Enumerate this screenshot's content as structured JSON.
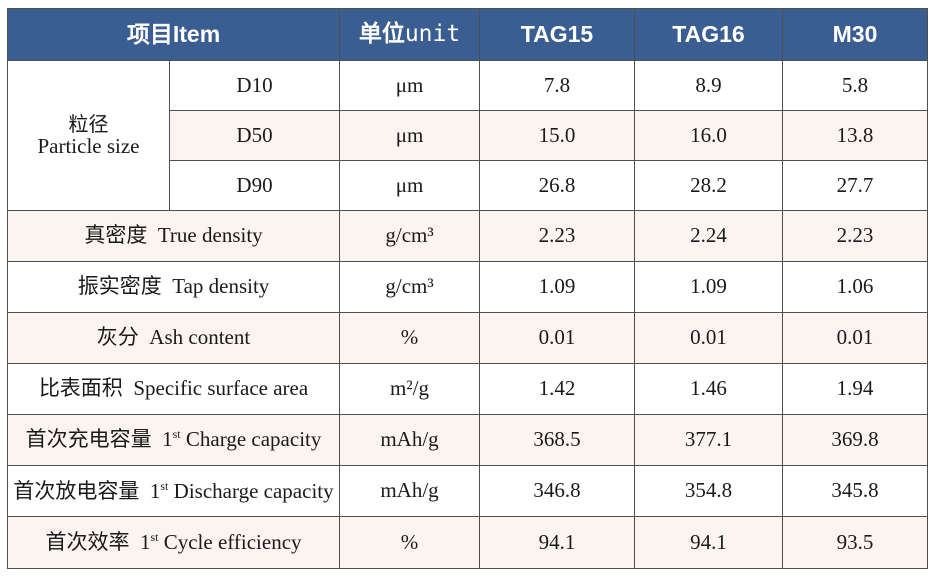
{
  "header": {
    "item_cn": "项目",
    "item_en": "Item",
    "unit_cn": "单位",
    "unit_en": "unit",
    "products": [
      "TAG15",
      "TAG16",
      "M30"
    ]
  },
  "particle_size": {
    "label_cn": "粒径",
    "label_en": "Particle size",
    "rows": [
      {
        "sub": "D10",
        "unit": "μm",
        "values": [
          "7.8",
          "8.9",
          "5.8"
        ]
      },
      {
        "sub": "D50",
        "unit": "μm",
        "values": [
          "15.0",
          "16.0",
          "13.8"
        ]
      },
      {
        "sub": "D90",
        "unit": "μm",
        "values": [
          "26.8",
          "28.2",
          "27.7"
        ]
      }
    ]
  },
  "rows": [
    {
      "cn": "真密度",
      "en": "True density",
      "unit": "g/cm³",
      "values": [
        "2.23",
        "2.24",
        "2.23"
      ]
    },
    {
      "cn": "振实密度",
      "en": "Tap density",
      "unit": "g/cm³",
      "values": [
        "1.09",
        "1.09",
        "1.06"
      ]
    },
    {
      "cn": "灰分",
      "en": "Ash content",
      "unit": "%",
      "values": [
        "0.01",
        "0.01",
        "0.01"
      ]
    },
    {
      "cn": "比表面积",
      "en": "Specific surface area",
      "unit": "m²/g",
      "values": [
        "1.42",
        "1.46",
        "1.94"
      ]
    },
    {
      "cn": "首次充电容量",
      "num": "1",
      "sup": "st",
      "en": "Charge capacity",
      "unit": "mAh/g",
      "values": [
        "368.5",
        "377.1",
        "369.8"
      ]
    },
    {
      "cn": "首次放电容量",
      "num": "1",
      "sup": "st",
      "en": "Discharge capacity",
      "unit": "mAh/g",
      "values": [
        "346.8",
        "354.8",
        "345.8"
      ]
    },
    {
      "cn": "首次效率",
      "num": "1",
      "sup": "st",
      "en": "Cycle efficiency",
      "unit": "%",
      "values": [
        "94.1",
        "94.1",
        "93.5"
      ]
    }
  ]
}
